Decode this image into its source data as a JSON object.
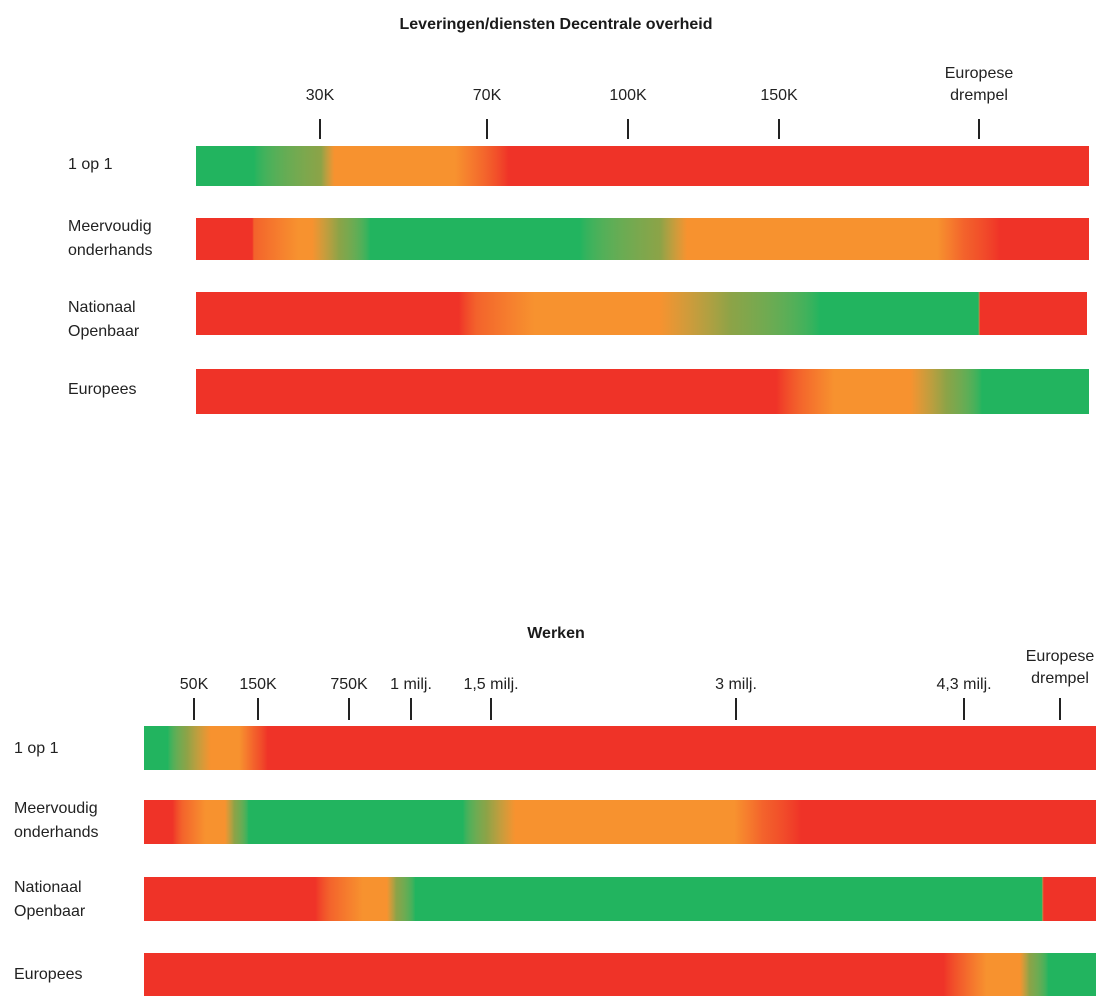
{
  "colors": {
    "green": "#22b45f",
    "orange": "#f7922f",
    "red": "#ef3328"
  },
  "diagrams": [
    {
      "title": "Leveringen/diensten Decentrale overheid",
      "ticks": [
        "30K",
        "70K",
        "100K",
        "150K",
        "Europese\ndrempel"
      ],
      "rows": [
        {
          "label": "1 op 1",
          "levels": [
            0,
            0,
            0.5,
            1,
            1,
            1.5,
            2,
            2
          ]
        },
        {
          "label": "Meervoudig\nonderhands",
          "levels": [
            2,
            2,
            1.5,
            1,
            1,
            0.5,
            0,
            0,
            0,
            0.5,
            1,
            1,
            1,
            1.5,
            2,
            2
          ]
        },
        {
          "label": "Nationaal\nOpenbaar",
          "levels": [
            2,
            2,
            1.5,
            1,
            1,
            0.5,
            0,
            0,
            2,
            2
          ]
        },
        {
          "label": "Europees",
          "levels": [
            2,
            2,
            1.5,
            1,
            1,
            0.5,
            0,
            0
          ]
        }
      ]
    },
    {
      "title": "Werken",
      "ticks": [
        "50K",
        "150K",
        "750K",
        "1 milj.",
        "1,5 milj.",
        "3 milj.",
        "4,3 milj.",
        "Europese\ndrempel"
      ],
      "rows": [
        {
          "label": "1 op 1",
          "levels": [
            0,
            0,
            0.5,
            1,
            1,
            1.5,
            2,
            2
          ]
        },
        {
          "label": "Meervoudig\nonderhands",
          "levels": [
            2,
            2,
            1.5,
            1,
            1,
            0.5,
            0,
            0,
            0,
            0.5,
            1,
            1,
            1,
            1.5,
            2,
            2
          ]
        },
        {
          "label": "Nationaal\nOpenbaar",
          "levels": [
            2,
            2,
            1.5,
            1,
            1,
            0.5,
            0,
            0,
            2,
            2
          ]
        },
        {
          "label": "Europees",
          "levels": [
            2,
            2,
            1.5,
            1,
            1,
            0.5,
            0,
            0
          ]
        }
      ]
    }
  ]
}
